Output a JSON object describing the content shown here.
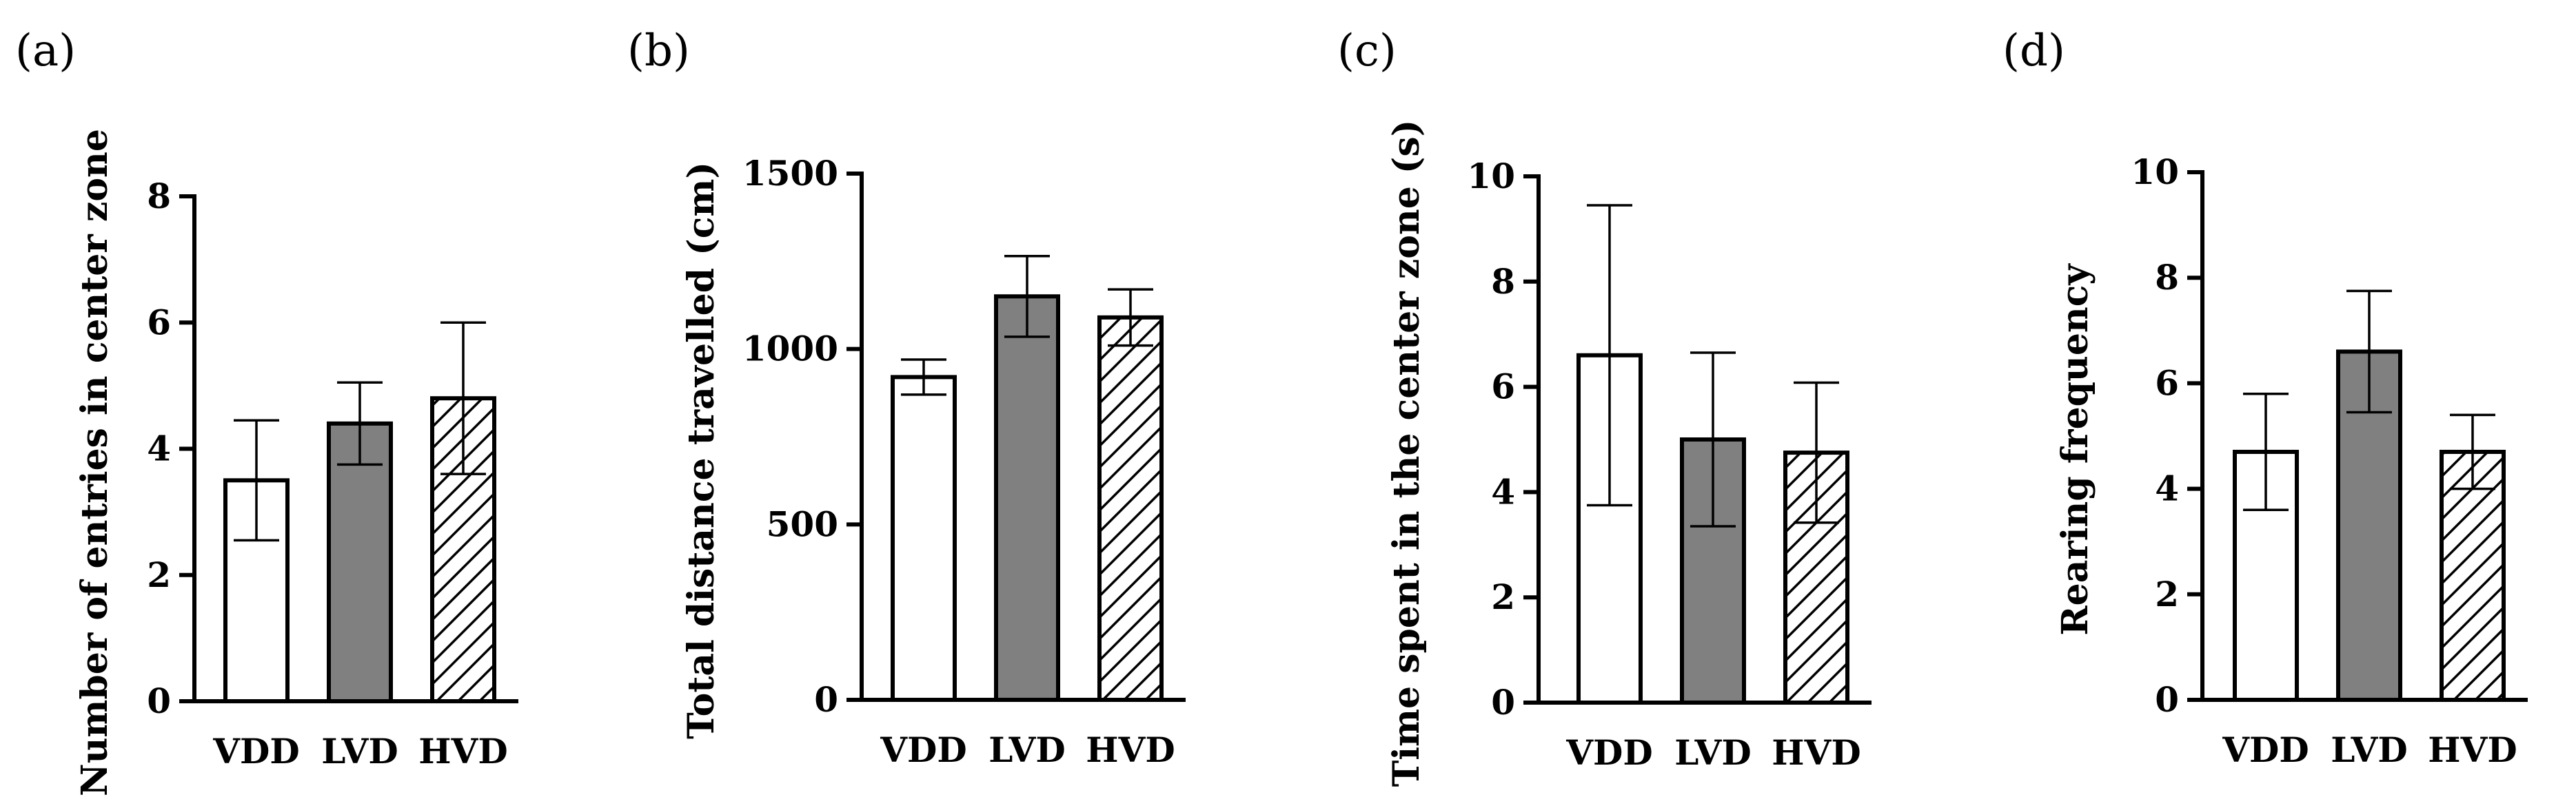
{
  "chart_data": [
    {
      "type": "bar",
      "panel": "(a)",
      "categories": [
        "VDD",
        "LVD",
        "HVD"
      ],
      "values": [
        3.5,
        4.4,
        4.8
      ],
      "errors": [
        0.95,
        0.65,
        1.2
      ],
      "ylabel": "Number of entries in center zone",
      "ylim": [
        0,
        8
      ],
      "yticks": [
        "0",
        "2",
        "4",
        "6",
        "8"
      ],
      "fills": [
        "white",
        "gray",
        "hatch"
      ]
    },
    {
      "type": "bar",
      "panel": "(b)",
      "categories": [
        "VDD",
        "LVD",
        "HVD"
      ],
      "values": [
        920,
        1150,
        1090
      ],
      "errors": [
        50,
        115,
        80
      ],
      "ylabel": "Total distance travelled (cm)",
      "ylim": [
        0,
        1500
      ],
      "yticks": [
        "0",
        "500",
        "1000",
        "1500"
      ],
      "fills": [
        "white",
        "gray",
        "hatch"
      ]
    },
    {
      "type": "bar",
      "panel": "(c)",
      "categories": [
        "VDD",
        "LVD",
        "HVD"
      ],
      "values": [
        6.6,
        5.0,
        4.75
      ],
      "errors": [
        2.85,
        1.65,
        1.33
      ],
      "ylabel": "Time spent in the center zone (s)",
      "ylim": [
        0,
        10
      ],
      "yticks": [
        "0",
        "2",
        "4",
        "6",
        "8",
        "10"
      ],
      "fills": [
        "white",
        "gray",
        "hatch"
      ]
    },
    {
      "type": "bar",
      "panel": "(d)",
      "categories": [
        "VDD",
        "LVD",
        "HVD"
      ],
      "values": [
        4.7,
        6.6,
        4.7
      ],
      "errors": [
        1.1,
        1.15,
        0.7
      ],
      "ylabel": "Rearing frequency",
      "ylim": [
        0,
        10
      ],
      "yticks": [
        "0",
        "2",
        "4",
        "6",
        "8",
        "10"
      ],
      "fills": [
        "white",
        "gray",
        "hatch"
      ]
    }
  ],
  "colors": {
    "bar_gray": "#808080",
    "stroke": "#000000",
    "background": "#ffffff"
  }
}
